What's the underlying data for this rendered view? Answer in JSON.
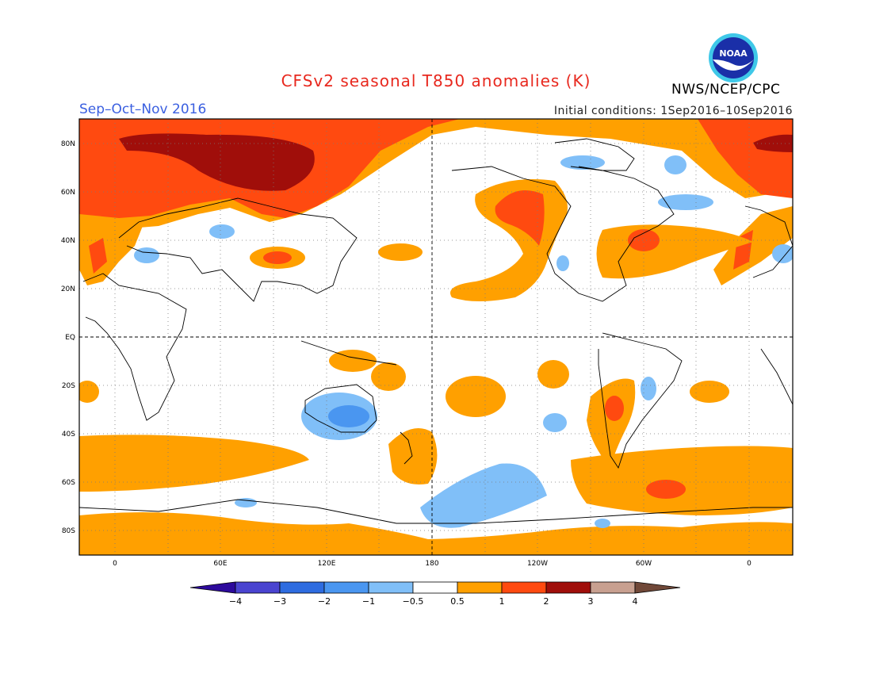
{
  "title": "CFSv2 seasonal T850 anomalies (K)",
  "season": "Sep–Oct–Nov 2016",
  "initial_conditions": "Initial conditions: 1Sep2016–10Sep2016",
  "agency": "NWS/NCEP/CPC",
  "logo_text": "NOAA",
  "colors": {
    "title": "#e8281e",
    "season": "#3a5fe0",
    "neg4": "#2d0a9c",
    "neg3": "#4a44d0",
    "neg2": "#2e6ce0",
    "neg1": "#4a96f0",
    "neg05": "#80bff8",
    "neutral": "#ffffff",
    "pos05": "#ffa000",
    "pos1": "#ff4a10",
    "pos2": "#a00e0a",
    "pos3": "#c8a090",
    "pos4": "#704838"
  },
  "map": {
    "lat_labels": [
      "80N",
      "60N",
      "40N",
      "20N",
      "EQ",
      "20S",
      "40S",
      "60S",
      "80S"
    ],
    "lon_labels": [
      "0",
      "60E",
      "120E",
      "180",
      "120W",
      "60W",
      "0"
    ]
  },
  "colorbar": {
    "labels": [
      "−4",
      "−3",
      "−2",
      "−1",
      "−0.5",
      "0.5",
      "1",
      "2",
      "3",
      "4"
    ]
  }
}
